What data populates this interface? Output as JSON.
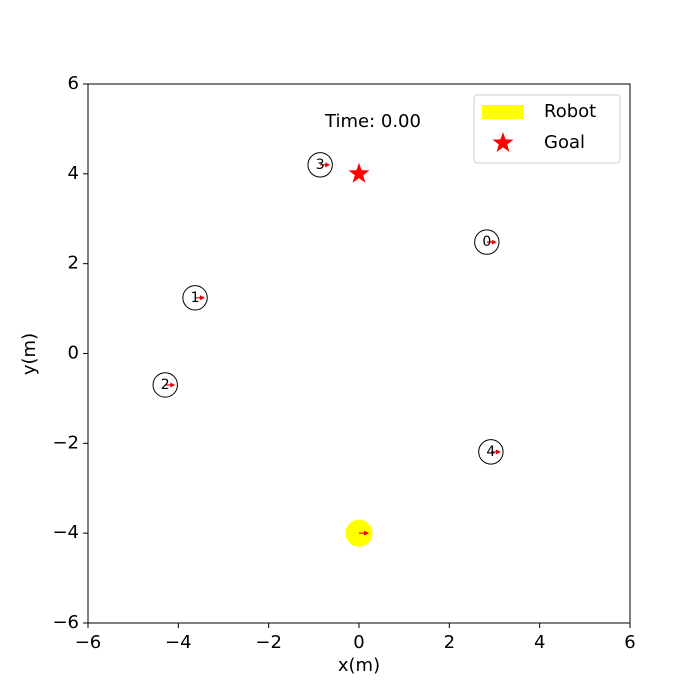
{
  "chart_data": {
    "type": "scatter",
    "xlabel": "x(m)",
    "ylabel": "y(m)",
    "annotation": "Time: 0.00",
    "xlim": [
      -6,
      6
    ],
    "ylim": [
      -6,
      6
    ],
    "xticks": [
      {
        "value": -6,
        "label": "−6"
      },
      {
        "value": -4,
        "label": "−4"
      },
      {
        "value": -2,
        "label": "−2"
      },
      0,
      2,
      4,
      6
    ],
    "yticks": [
      {
        "value": -6,
        "label": "−6"
      },
      {
        "value": -4,
        "label": "−4"
      },
      {
        "value": -2,
        "label": "−2"
      },
      0,
      2,
      4,
      6
    ],
    "legend": "upper right",
    "series": [
      {
        "name": "Robot",
        "color": "#ffff00",
        "x": [
          0
        ],
        "y": [
          -4
        ],
        "radius": 0.3
      },
      {
        "name": "Goal",
        "color": "#ff0000",
        "x": [
          0
        ],
        "y": [
          4
        ]
      }
    ],
    "humans": {
      "labels": [
        "0",
        "1",
        "2",
        "3",
        "4"
      ],
      "x": [
        2.83,
        -3.63,
        -4.29,
        -0.86,
        2.92
      ],
      "y": [
        2.48,
        1.24,
        -0.7,
        4.2,
        -2.19
      ],
      "radius": 0.27
    }
  }
}
